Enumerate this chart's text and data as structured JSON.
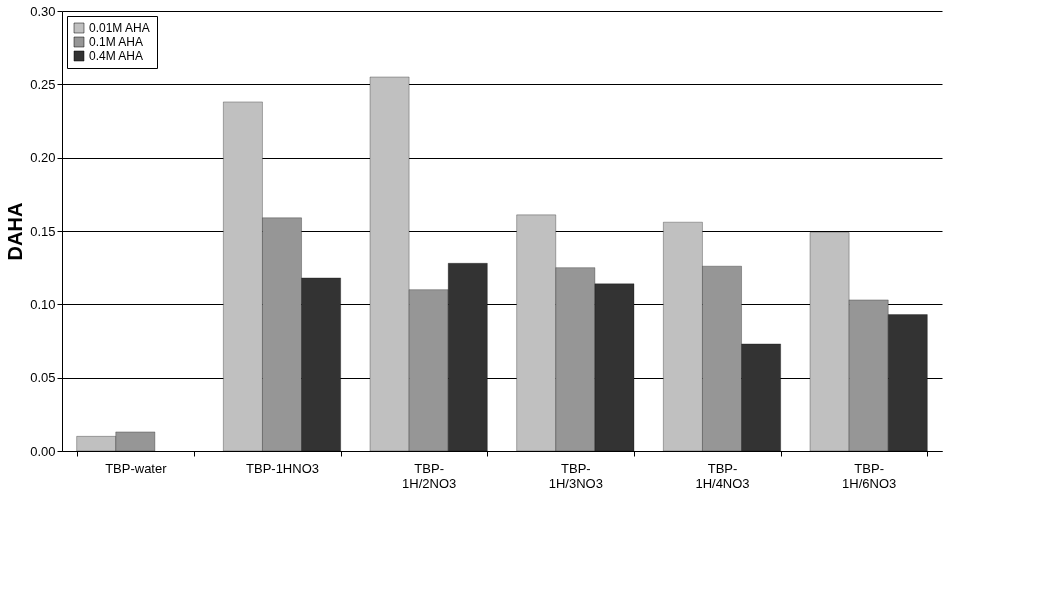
{
  "chart_data": {
    "type": "bar",
    "ylabel": "DAHA",
    "categories": [
      "TBP-water",
      "TBP-1HNO3",
      "TBP-\n1H/2NO3",
      "TBP-\n1H/3NO3",
      "TBP-\n1H/4NO3",
      "TBP-\n1H/6NO3"
    ],
    "series": [
      {
        "name": "0.01M AHA",
        "color": "#c0c0c0",
        "values": [
          0.01,
          0.238,
          0.255,
          0.161,
          0.156,
          0.149
        ]
      },
      {
        "name": "0.1M AHA",
        "color": "#969696",
        "values": [
          0.013,
          0.159,
          0.11,
          0.125,
          0.126,
          0.103
        ]
      },
      {
        "name": "0.4M AHA",
        "color": "#333333",
        "values": [
          null,
          0.118,
          0.128,
          0.114,
          0.073,
          0.093
        ]
      }
    ],
    "ylim": [
      0,
      0.3
    ],
    "yticks": [
      {
        "value": 0,
        "label": "0.00"
      },
      {
        "value": 0.05,
        "label": "0.05"
      },
      {
        "value": 0.1,
        "label": "0.10"
      },
      {
        "value": 0.15,
        "label": "0.15"
      },
      {
        "value": 0.2,
        "label": "0.20"
      },
      {
        "value": 0.25,
        "label": "0.25"
      },
      {
        "value": 0.3,
        "label": "0.30"
      }
    ],
    "grid": "y",
    "legend": "top left"
  }
}
